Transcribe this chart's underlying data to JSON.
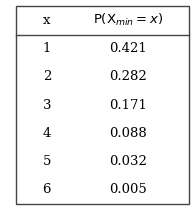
{
  "col1_header": "x",
  "col2_header": "$\\mathrm{P}(\\mathrm{X}_{\\mathit{min}} = x)$",
  "rows": [
    [
      "1",
      "0.421"
    ],
    [
      "2",
      "0.282"
    ],
    [
      "3",
      "0.171"
    ],
    [
      "4",
      "0.088"
    ],
    [
      "5",
      "0.032"
    ],
    [
      "6",
      "0.005"
    ]
  ],
  "bg_color": "white",
  "border_color": "#444444",
  "header_fontsize": 9.5,
  "cell_fontsize": 9.5,
  "figsize": [
    1.95,
    2.1
  ],
  "dpi": 100
}
